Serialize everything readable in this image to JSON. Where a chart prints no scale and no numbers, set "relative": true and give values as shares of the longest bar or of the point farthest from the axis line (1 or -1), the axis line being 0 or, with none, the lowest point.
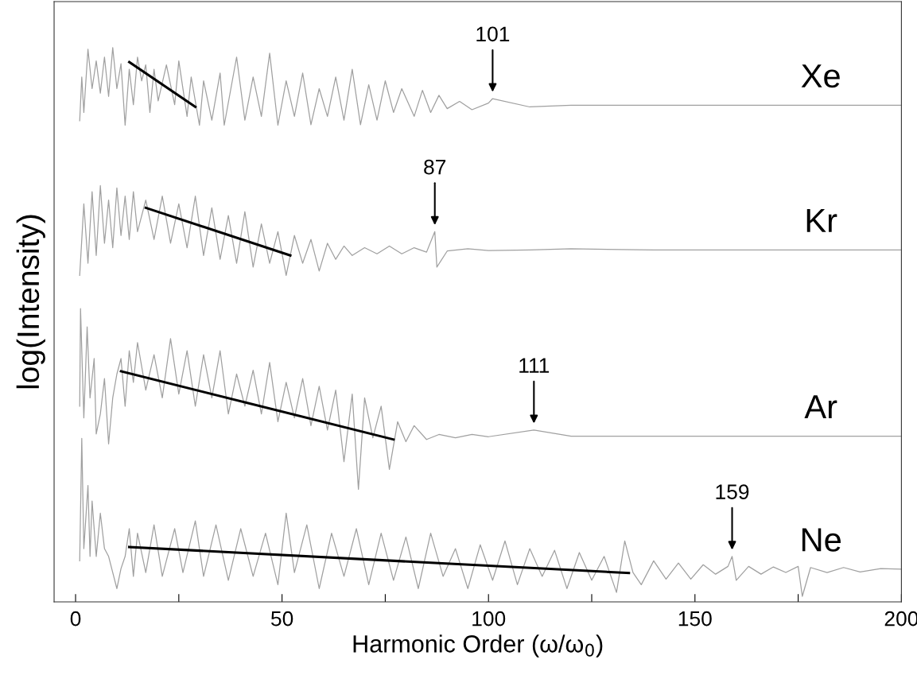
{
  "chart_data": {
    "type": "line",
    "relative": true,
    "xlabel": "Harmonic Order (ω/ω$_{0}$)",
    "ylabel": "log(Intensity)",
    "xlim": [
      -5.2,
      200
    ],
    "xticks": [
      0,
      {
        "value": 25,
        "label": null
      },
      50,
      {
        "value": 75,
        "label": null
      },
      100,
      {
        "value": 125,
        "label": null
      },
      150,
      {
        "value": 175,
        "label": null
      },
      200
    ],
    "grid": false,
    "legend": false,
    "marker": "none",
    "line_style": "solid",
    "series": [
      {
        "name": "Xe",
        "color": "#a0a0a0",
        "x": [
          1,
          1.5,
          2,
          3,
          4,
          5,
          6,
          7,
          8,
          9,
          10,
          11,
          12,
          13,
          14,
          15,
          16,
          17,
          18,
          19,
          20,
          22,
          24,
          25,
          27,
          28,
          30,
          31,
          33,
          35,
          36,
          39,
          41,
          43,
          45,
          47,
          49,
          51,
          53,
          55,
          57,
          59,
          61,
          63,
          65,
          67,
          69,
          71,
          73,
          75,
          77,
          79,
          82,
          84,
          86,
          88,
          90,
          93,
          96,
          100,
          101,
          110,
          120,
          140,
          160,
          200
        ],
        "values": [
          0.868,
          0.947,
          0.883,
          0.997,
          0.926,
          0.976,
          0.918,
          0.983,
          0.912,
          1.0,
          0.926,
          0.971,
          0.86,
          0.961,
          0.897,
          0.983,
          0.94,
          0.969,
          0.883,
          0.961,
          0.904,
          0.969,
          0.897,
          0.976,
          0.876,
          0.947,
          0.86,
          0.94,
          0.869,
          0.954,
          0.86,
          0.983,
          0.869,
          0.947,
          0.876,
          0.99,
          0.86,
          0.94,
          0.876,
          0.954,
          0.861,
          0.926,
          0.876,
          0.947,
          0.869,
          0.961,
          0.861,
          0.933,
          0.869,
          0.94,
          0.883,
          0.926,
          0.876,
          0.923,
          0.883,
          0.914,
          0.89,
          0.903,
          0.888,
          0.9,
          0.908,
          0.893,
          0.896,
          0.896,
          0.896,
          0.896
        ]
      },
      {
        "name": "Kr",
        "color": "#a0a0a0",
        "x": [
          1,
          2,
          3,
          4,
          5,
          6,
          7,
          8,
          9,
          10,
          11,
          12,
          13,
          14,
          15,
          17,
          19,
          21,
          23,
          25,
          27,
          29,
          31,
          33,
          35,
          37,
          39,
          41,
          43,
          45,
          47,
          49,
          51,
          53,
          55,
          57,
          59,
          61,
          63,
          65,
          67,
          70,
          73,
          76,
          79,
          82,
          85,
          87,
          87.5,
          90,
          95,
          100,
          110,
          120,
          140,
          200
        ],
        "values": [
          0.589,
          0.718,
          0.611,
          0.74,
          0.625,
          0.751,
          0.647,
          0.725,
          0.639,
          0.747,
          0.661,
          0.732,
          0.654,
          0.74,
          0.668,
          0.725,
          0.654,
          0.732,
          0.647,
          0.718,
          0.639,
          0.732,
          0.625,
          0.711,
          0.618,
          0.697,
          0.611,
          0.704,
          0.604,
          0.682,
          0.611,
          0.668,
          0.589,
          0.661,
          0.611,
          0.654,
          0.597,
          0.647,
          0.618,
          0.642,
          0.625,
          0.639,
          0.628,
          0.642,
          0.628,
          0.639,
          0.631,
          0.668,
          0.604,
          0.633,
          0.637,
          0.634,
          0.635,
          0.637,
          0.635,
          0.635
        ]
      },
      {
        "name": "Ar",
        "color": "#a0a0a0",
        "x": [
          1,
          1.2,
          2,
          2.8,
          3.5,
          4.5,
          5,
          6,
          7,
          8,
          9,
          10,
          11,
          12,
          13,
          14,
          15,
          17,
          19,
          21,
          23,
          25,
          27,
          29,
          31,
          33,
          35,
          37,
          39,
          41,
          43,
          45,
          47,
          49,
          51,
          53,
          55,
          57,
          59,
          61,
          63,
          65,
          67,
          68.5,
          70,
          72,
          74,
          76,
          78,
          80,
          82,
          85,
          88,
          92,
          96,
          100,
          111,
          120,
          140,
          200
        ],
        "values": [
          0.353,
          0.529,
          0.332,
          0.496,
          0.368,
          0.439,
          0.303,
          0.339,
          0.403,
          0.285,
          0.368,
          0.411,
          0.439,
          0.353,
          0.453,
          0.396,
          0.468,
          0.382,
          0.446,
          0.368,
          0.475,
          0.375,
          0.453,
          0.353,
          0.446,
          0.368,
          0.453,
          0.339,
          0.411,
          0.353,
          0.418,
          0.339,
          0.432,
          0.325,
          0.396,
          0.332,
          0.403,
          0.318,
          0.389,
          0.31,
          0.382,
          0.253,
          0.375,
          0.203,
          0.368,
          0.296,
          0.353,
          0.239,
          0.325,
          0.289,
          0.318,
          0.293,
          0.302,
          0.296,
          0.302,
          0.298,
          0.31,
          0.299,
          0.299,
          0.299
        ]
      },
      {
        "name": "Ne",
        "color": "#a0a0a0",
        "x": [
          1,
          1.5,
          2,
          3,
          3.5,
          4,
          5,
          6,
          7,
          8,
          9,
          10,
          11,
          12,
          13,
          14,
          15,
          17,
          19,
          21,
          24,
          26,
          29,
          31,
          34,
          37,
          40,
          43,
          46,
          49,
          51,
          53,
          56,
          59,
          62,
          65,
          68,
          71,
          74,
          77,
          80,
          83,
          86,
          89,
          92,
          95,
          98,
          101,
          104,
          107,
          110,
          113,
          116,
          119,
          122,
          125,
          128,
          131,
          133,
          135,
          137,
          140,
          143,
          146,
          149,
          152,
          155,
          158,
          159,
          160,
          163,
          166,
          169,
          172,
          175,
          176,
          178,
          182,
          186,
          190,
          195,
          200
        ],
        "values": [
          0.074,
          0.295,
          0.096,
          0.21,
          0.082,
          0.182,
          0.082,
          0.16,
          0.096,
          0.082,
          0.053,
          0.024,
          0.06,
          0.082,
          0.132,
          0.046,
          0.124,
          0.053,
          0.139,
          0.046,
          0.132,
          0.053,
          0.146,
          0.046,
          0.139,
          0.039,
          0.132,
          0.046,
          0.124,
          0.031,
          0.16,
          0.053,
          0.139,
          0.024,
          0.124,
          0.046,
          0.132,
          0.031,
          0.124,
          0.039,
          0.117,
          0.024,
          0.124,
          0.046,
          0.096,
          0.024,
          0.103,
          0.039,
          0.11,
          0.031,
          0.096,
          0.046,
          0.093,
          0.024,
          0.089,
          0.039,
          0.082,
          0.017,
          0.11,
          0.053,
          0.031,
          0.074,
          0.041,
          0.07,
          0.041,
          0.067,
          0.05,
          0.064,
          0.082,
          0.039,
          0.064,
          0.05,
          0.063,
          0.053,
          0.064,
          0.01,
          0.062,
          0.053,
          0.062,
          0.054,
          0.06,
          0.059
        ]
      },
      {
        "type": "line",
        "color": "#000000",
        "x": [
          13,
          29
        ],
        "values": [
          0.974,
          0.893
        ]
      },
      {
        "type": "line",
        "color": "#000000",
        "x": [
          17,
          52
        ],
        "values": [
          0.711,
          0.625
        ]
      },
      {
        "type": "line",
        "color": "#000000",
        "x": [
          11,
          77
        ],
        "values": [
          0.416,
          0.293
        ]
      },
      {
        "type": "line",
        "color": "#000000",
        "x": [
          13,
          134
        ],
        "values": [
          0.099,
          0.052
        ]
      }
    ],
    "annotations": [
      {
        "text": "101",
        "x": 101,
        "y": 0.908
      },
      {
        "text": "87",
        "x": 87,
        "y": 0.668
      },
      {
        "text": "111",
        "x": 111,
        "y": 0.31
      },
      {
        "text": "159",
        "x": 159,
        "y": 0.082
      }
    ]
  }
}
